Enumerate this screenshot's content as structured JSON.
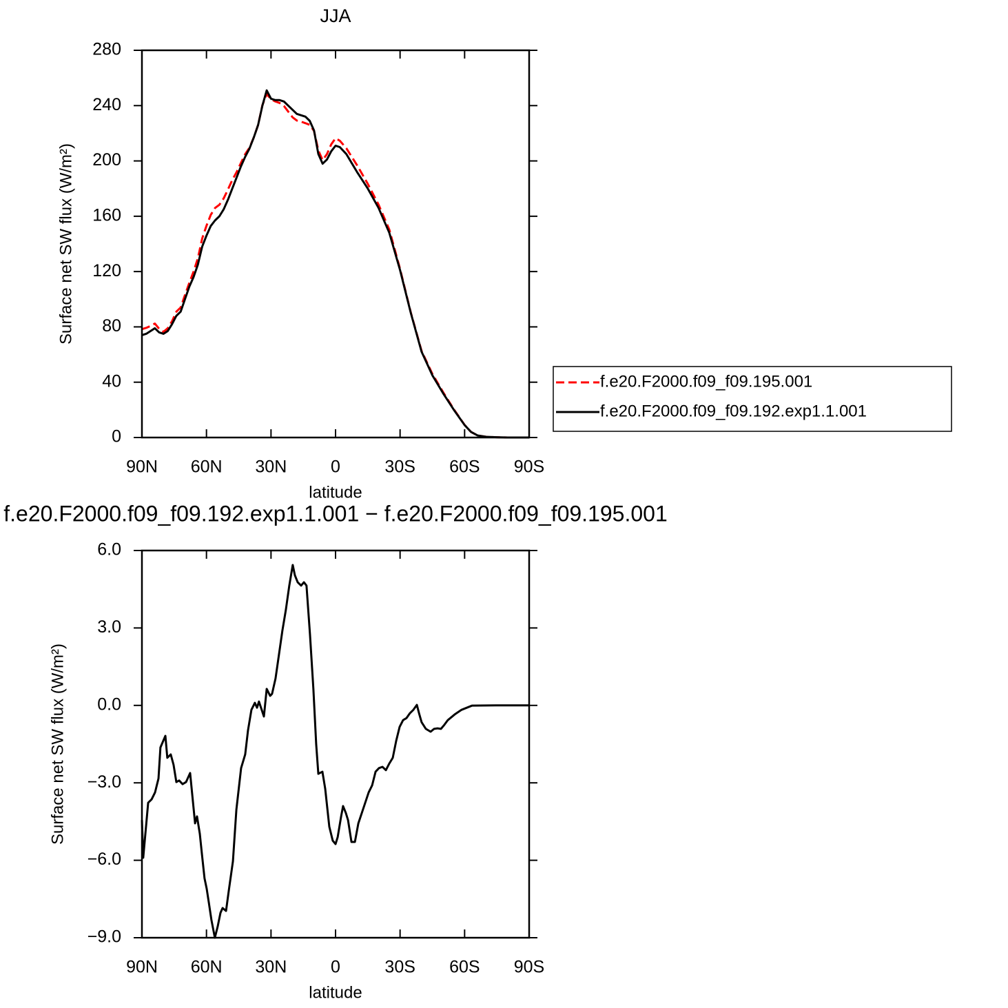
{
  "chart_data": [
    {
      "type": "line",
      "title": "JJA",
      "xlabel": "latitude",
      "ylabel": "Surface net SW flux (W/m²)",
      "x": [
        90,
        88,
        86,
        84,
        82,
        80,
        78,
        76,
        74,
        72,
        70,
        68,
        66,
        64,
        62,
        60,
        58,
        56,
        54,
        52,
        50,
        48,
        46,
        44,
        42,
        40,
        38,
        36,
        34,
        32,
        30,
        28,
        26,
        24,
        22,
        20,
        18,
        16,
        14,
        12,
        10,
        8,
        6,
        4,
        2,
        0,
        -2,
        -5,
        -10,
        -15,
        -20,
        -25,
        -30,
        -35,
        -40,
        -45,
        -50,
        -55,
        -60,
        -63,
        -66,
        -70,
        -75,
        -80,
        -90
      ],
      "series": [
        {
          "name": "f.e20.F2000.f09_f09.195.001",
          "color": "#ff0000",
          "linestyle": "dashed",
          "values": [
            78.4,
            79.3,
            80.7,
            82.4,
            78.6,
            76.4,
            79,
            84.1,
            91,
            94,
            103,
            111.7,
            120,
            129.6,
            143.9,
            153.1,
            161,
            166,
            168.3,
            172.9,
            179.4,
            186.2,
            191.9,
            198.5,
            204.9,
            209.6,
            217,
            226,
            240.3,
            248.4,
            244.6,
            243,
            241.9,
            239.8,
            235.7,
            231.6,
            229.2,
            228.4,
            227.3,
            226.1,
            221.7,
            207.6,
            200.6,
            204.9,
            212,
            216.4,
            214.6,
            209.2,
            196.9,
            183.4,
            168.4,
            150.3,
            121.8,
            90.3,
            62.6,
            46,
            32.8,
            20.4,
            9.1,
            4,
            1.5,
            0.5,
            0.2,
            0,
            0
          ]
        },
        {
          "name": "f.e20.F2000.f09_f09.192.exp1.1.001",
          "color": "#000000",
          "linestyle": "solid",
          "values": [
            74,
            75,
            77,
            79,
            76,
            75,
            77,
            82,
            88,
            91,
            100,
            109,
            116,
            125,
            138,
            146,
            153,
            157,
            160,
            165,
            172,
            180,
            188,
            196,
            203,
            209,
            217,
            226,
            240,
            251,
            245,
            244,
            244,
            243,
            240,
            237,
            234,
            233,
            232,
            229,
            222,
            205,
            198,
            201,
            207,
            211,
            210,
            205,
            192,
            180,
            166,
            148,
            121,
            90,
            62,
            45,
            32,
            20,
            9,
            4,
            1.5,
            0.5,
            0.2,
            0,
            0
          ]
        }
      ],
      "xlim": [
        90,
        -90
      ],
      "xticks": [
        {
          "value": 90,
          "label": "90N"
        },
        {
          "value": 60,
          "label": "60N"
        },
        {
          "value": 30,
          "label": "30N"
        },
        0,
        {
          "value": -30,
          "label": "30S"
        },
        {
          "value": -60,
          "label": "60S"
        },
        {
          "value": -90,
          "label": "90S"
        }
      ],
      "ylim": [
        0,
        280
      ],
      "yticks": [
        0,
        40,
        80,
        120,
        160,
        200,
        240,
        280
      ],
      "legend": "outside-right"
    },
    {
      "type": "line",
      "title": "f.e20.F2000.f09_f09.192.exp1.1.001 − f.e20.F2000.f09_f09.195.001",
      "xlabel": "latitude",
      "ylabel": "Surface net SW flux (W/m²)",
      "color": "#000000",
      "x": [
        90,
        89.4,
        87.1,
        85.5,
        83.9,
        82.3,
        81.4,
        79.1,
        78.2,
        76.6,
        75.3,
        74,
        72.7,
        71.1,
        69.5,
        67.6,
        65.3,
        64.4,
        63.1,
        62.1,
        60.9,
        59.9,
        58.9,
        57.7,
        56.1,
        54.8,
        53.5,
        52.5,
        50.9,
        49.6,
        47.7,
        46.1,
        43.9,
        42,
        40.7,
        39.1,
        37.5,
        36.5,
        35.6,
        33.3,
        32,
        30.4,
        29.5,
        27.9,
        26.3,
        24.7,
        23.1,
        21.5,
        19.9,
        18.9,
        17.6,
        16,
        14.7,
        13.5,
        11.9,
        10.3,
        9,
        8,
        6.1,
        4.8,
        2.9,
        1.3,
        0,
        -1,
        -2.6,
        -3.5,
        -4.8,
        -5.8,
        -7.4,
        -9,
        -10.6,
        -12.2,
        -13.8,
        -15.4,
        -17,
        -18.6,
        -20.2,
        -21.8,
        -23.4,
        -25,
        -26.6,
        -28.2,
        -29.8,
        -31.4,
        -33,
        -34.6,
        -36.2,
        -37.8,
        -38.8,
        -40,
        -42,
        -44.2,
        -45.8,
        -47.4,
        -49,
        -50.6,
        -52.2,
        -55.4,
        -58.6,
        -63.4,
        -74.6,
        -90
      ],
      "values": [
        -4.44,
        -5.9,
        -3.77,
        -3.64,
        -3.37,
        -2.83,
        -1.63,
        -1.18,
        -2.03,
        -1.9,
        -2.3,
        -2.97,
        -2.91,
        -3.05,
        -2.97,
        -2.62,
        -4.57,
        -4.3,
        -4.97,
        -5.77,
        -6.7,
        -7.1,
        -7.64,
        -8.31,
        -9,
        -8.57,
        -8.04,
        -7.85,
        -7.96,
        -7.16,
        -6.04,
        -4.04,
        -2.43,
        -1.9,
        -0.97,
        -0.17,
        0.1,
        -0.09,
        0.15,
        -0.43,
        0.64,
        0.37,
        0.45,
        1.04,
        1.97,
        2.9,
        3.7,
        4.64,
        5.44,
        5.04,
        4.77,
        4.64,
        4.77,
        4.64,
        2.77,
        0.64,
        -1.5,
        -2.65,
        -2.57,
        -3.23,
        -4.7,
        -5.24,
        -5.37,
        -5.1,
        -4.3,
        -3.9,
        -4.17,
        -4.44,
        -5.29,
        -5.29,
        -4.57,
        -4.17,
        -3.77,
        -3.37,
        -3.1,
        -2.57,
        -2.43,
        -2.38,
        -2.51,
        -2.25,
        -2.03,
        -1.37,
        -0.83,
        -0.57,
        -0.49,
        -0.3,
        -0.17,
        0.02,
        -0.3,
        -0.65,
        -0.91,
        -1.02,
        -0.91,
        -0.89,
        -0.91,
        -0.75,
        -0.57,
        -0.35,
        -0.17,
        -0.01,
        0,
        0
      ],
      "xlim": [
        90,
        -90
      ],
      "xticks": [
        {
          "value": 90,
          "label": "90N"
        },
        {
          "value": 60,
          "label": "60N"
        },
        {
          "value": 30,
          "label": "30N"
        },
        0,
        {
          "value": -30,
          "label": "30S"
        },
        {
          "value": -60,
          "label": "60S"
        },
        {
          "value": -90,
          "label": "90S"
        }
      ],
      "ylim": [
        -9,
        6
      ],
      "yticks": [
        {
          "value": -9,
          "label": "−9.0"
        },
        {
          "value": -6,
          "label": "−6.0"
        },
        {
          "value": -3,
          "label": "−3.0"
        },
        {
          "value": 0,
          "label": "0.0"
        },
        {
          "value": 3,
          "label": "3.0"
        },
        {
          "value": 6,
          "label": "6.0"
        }
      ]
    }
  ]
}
